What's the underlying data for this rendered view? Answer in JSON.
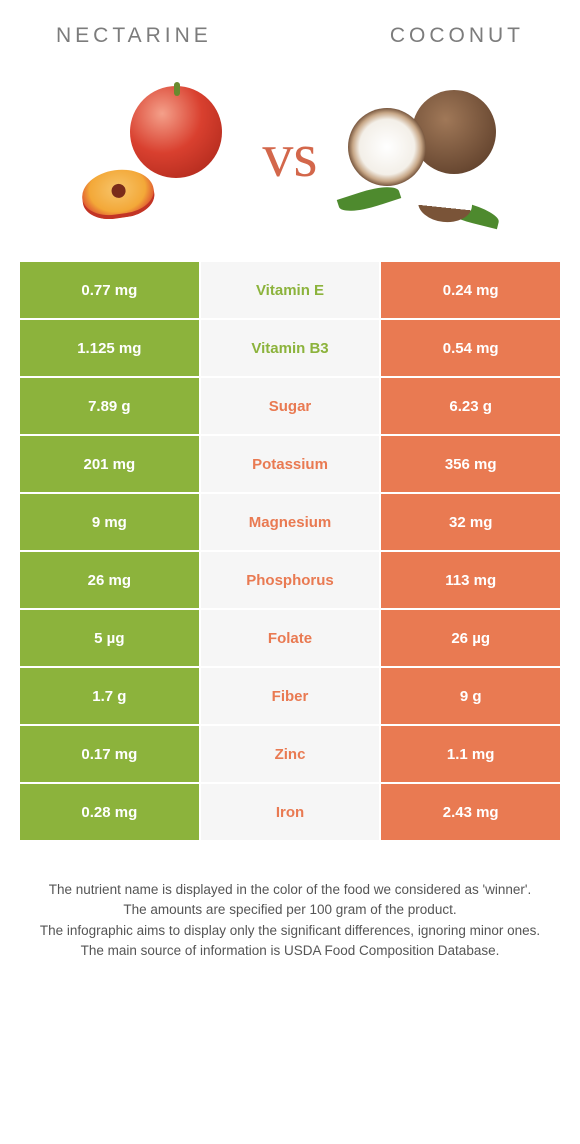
{
  "header": {
    "left_title": "NECTARINE",
    "right_title": "COCONUT",
    "vs_label": "vs"
  },
  "colors": {
    "left": "#8cb33c",
    "right": "#e97a52",
    "mid_bg": "#f6f6f6",
    "nutrient_left_winner": "#8cb33c",
    "nutrient_right_winner": "#e97a52"
  },
  "rows": [
    {
      "nutrient": "Vitamin E",
      "left": "0.77 mg",
      "right": "0.24 mg",
      "winner": "left"
    },
    {
      "nutrient": "Vitamin B3",
      "left": "1.125 mg",
      "right": "0.54 mg",
      "winner": "left"
    },
    {
      "nutrient": "Sugar",
      "left": "7.89 g",
      "right": "6.23 g",
      "winner": "right"
    },
    {
      "nutrient": "Potassium",
      "left": "201 mg",
      "right": "356 mg",
      "winner": "right"
    },
    {
      "nutrient": "Magnesium",
      "left": "9 mg",
      "right": "32 mg",
      "winner": "right"
    },
    {
      "nutrient": "Phosphorus",
      "left": "26 mg",
      "right": "113 mg",
      "winner": "right"
    },
    {
      "nutrient": "Folate",
      "left": "5 µg",
      "right": "26 µg",
      "winner": "right"
    },
    {
      "nutrient": "Fiber",
      "left": "1.7 g",
      "right": "9 g",
      "winner": "right"
    },
    {
      "nutrient": "Zinc",
      "left": "0.17 mg",
      "right": "1.1 mg",
      "winner": "right"
    },
    {
      "nutrient": "Iron",
      "left": "0.28 mg",
      "right": "2.43 mg",
      "winner": "right"
    }
  ],
  "footnotes": [
    "The nutrient name is displayed in the color of the food we considered as 'winner'.",
    "The amounts are specified per 100 gram of the product.",
    "The infographic aims to display only the significant differences, ignoring minor ones.",
    "The main source of information is USDA Food Composition Database."
  ]
}
